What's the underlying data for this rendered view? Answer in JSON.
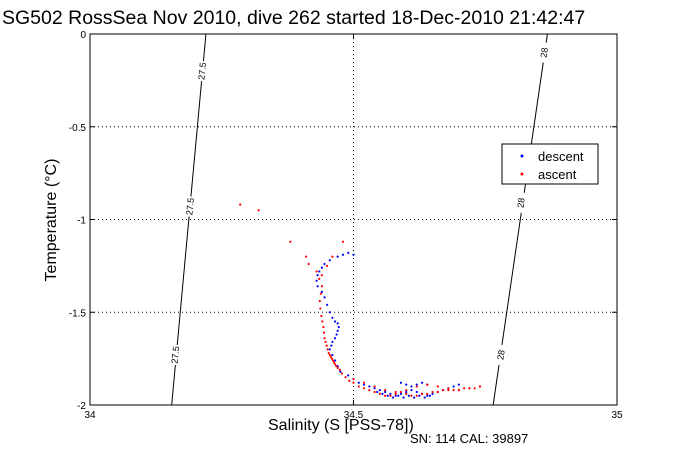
{
  "title": "SG502 RossSea Nov 2010, dive 262 started 18-Dec-2010 21:42:47",
  "footer": "SN: 114  CAL: 39897",
  "chart_data": {
    "type": "scatter",
    "xlabel": "Salinity (S [PSS-78])",
    "ylabel": "Temperature (°C)",
    "xlim": [
      34,
      35
    ],
    "ylim": [
      -2,
      0
    ],
    "xticks": [
      {
        "v": 34,
        "label": "34"
      },
      {
        "v": 34.5,
        "label": "34.5"
      },
      {
        "v": 35,
        "label": "35"
      }
    ],
    "yticks": [
      {
        "v": 0,
        "label": "0"
      },
      {
        "v": -0.5,
        "label": "-0.5"
      },
      {
        "v": -1,
        "label": "-1"
      },
      {
        "v": -1.5,
        "label": "-1.5"
      },
      {
        "v": -2,
        "label": "-2"
      }
    ],
    "grid": true,
    "legend_position": "right",
    "density_contours": [
      {
        "label": "27.5",
        "points": [
          [
            34.155,
            -2
          ],
          [
            34.22,
            0
          ]
        ],
        "labels_at": [
          [
            34.213,
            -0.2
          ],
          [
            34.19,
            -0.93
          ],
          [
            34.162,
            -1.73
          ]
        ]
      },
      {
        "label": "28",
        "points": [
          [
            34.765,
            -2
          ],
          [
            34.868,
            0
          ]
        ],
        "labels_at": [
          [
            34.862,
            -0.1
          ],
          [
            34.818,
            -0.91
          ],
          [
            34.78,
            -1.73
          ]
        ]
      }
    ],
    "series": [
      {
        "name": "descent",
        "color": "#0000ff",
        "x": [
          34.5,
          34.49,
          34.48,
          34.47,
          34.455,
          34.445,
          34.44,
          34.435,
          34.432,
          34.43,
          34.432,
          34.44,
          34.445,
          34.45,
          34.455,
          34.46,
          34.465,
          34.47,
          34.472,
          34.47,
          34.468,
          34.465,
          34.46,
          34.458,
          34.455,
          34.46,
          34.465,
          34.47,
          34.475,
          34.49,
          34.5,
          34.51,
          34.52,
          34.53,
          34.54,
          34.55,
          34.56,
          34.57,
          34.58,
          34.59,
          34.6,
          34.61,
          34.62,
          34.63,
          34.64,
          34.65,
          34.66,
          34.67,
          34.68,
          34.69,
          34.7,
          34.545,
          34.555,
          34.565,
          34.575,
          34.585,
          34.595,
          34.605,
          34.615,
          34.625,
          34.635,
          34.645,
          34.59,
          34.6,
          34.61,
          34.62,
          34.63,
          34.64
        ],
        "y": [
          -1.19,
          -1.18,
          -1.19,
          -1.2,
          -1.22,
          -1.24,
          -1.26,
          -1.28,
          -1.3,
          -1.33,
          -1.36,
          -1.39,
          -1.42,
          -1.46,
          -1.5,
          -1.53,
          -1.55,
          -1.56,
          -1.58,
          -1.6,
          -1.62,
          -1.64,
          -1.66,
          -1.68,
          -1.7,
          -1.73,
          -1.76,
          -1.79,
          -1.82,
          -1.84,
          -1.86,
          -1.88,
          -1.89,
          -1.9,
          -1.91,
          -1.92,
          -1.93,
          -1.94,
          -1.95,
          -1.94,
          -1.93,
          -1.92,
          -1.93,
          -1.94,
          -1.95,
          -1.94,
          -1.93,
          -1.92,
          -1.91,
          -1.9,
          -1.89,
          -1.93,
          -1.94,
          -1.95,
          -1.96,
          -1.95,
          -1.96,
          -1.95,
          -1.96,
          -1.95,
          -1.96,
          -1.95,
          -1.88,
          -1.89,
          -1.9,
          -1.89,
          -1.88,
          -1.89
        ]
      },
      {
        "name": "ascent",
        "color": "#ff0000",
        "x": [
          34.285,
          34.32,
          34.38,
          34.41,
          34.415,
          34.43,
          34.435,
          34.44,
          34.438,
          34.436,
          34.437,
          34.439,
          34.441,
          34.443,
          34.444,
          34.445,
          34.447,
          34.449,
          34.451,
          34.453,
          34.455,
          34.457,
          34.459,
          34.461,
          34.463,
          34.465,
          34.467,
          34.47,
          34.474,
          34.478,
          34.485,
          34.492,
          34.5,
          34.51,
          34.52,
          34.53,
          34.54,
          34.55,
          34.56,
          34.57,
          34.58,
          34.59,
          34.6,
          34.61,
          34.62,
          34.63,
          34.64,
          34.65,
          34.66,
          34.67,
          34.68,
          34.69,
          34.7,
          34.71,
          34.72,
          34.73,
          34.74,
          34.5,
          34.52,
          34.54,
          34.56,
          34.58,
          34.6,
          34.62,
          34.64,
          34.66,
          34.68,
          34.7,
          34.72,
          34.74,
          34.46,
          34.48,
          34.45,
          34.44
        ],
        "y": [
          -0.92,
          -0.95,
          -1.12,
          -1.2,
          -1.24,
          -1.28,
          -1.32,
          -1.36,
          -1.4,
          -1.44,
          -1.48,
          -1.52,
          -1.55,
          -1.58,
          -1.61,
          -1.64,
          -1.66,
          -1.68,
          -1.7,
          -1.72,
          -1.73,
          -1.74,
          -1.75,
          -1.76,
          -1.77,
          -1.78,
          -1.79,
          -1.8,
          -1.81,
          -1.83,
          -1.85,
          -1.87,
          -1.88,
          -1.9,
          -1.91,
          -1.92,
          -1.93,
          -1.94,
          -1.95,
          -1.95,
          -1.94,
          -1.93,
          -1.94,
          -1.95,
          -1.95,
          -1.94,
          -1.94,
          -1.93,
          -1.93,
          -1.92,
          -1.92,
          -1.92,
          -1.92,
          -1.91,
          -1.91,
          -1.91,
          -1.9,
          -1.86,
          -1.88,
          -1.9,
          -1.92,
          -1.93,
          -1.92,
          -1.9,
          -1.89,
          -1.9,
          -1.91,
          -1.92,
          -1.91,
          -1.9,
          -1.2,
          -1.12,
          -1.25,
          -1.3
        ]
      }
    ]
  }
}
